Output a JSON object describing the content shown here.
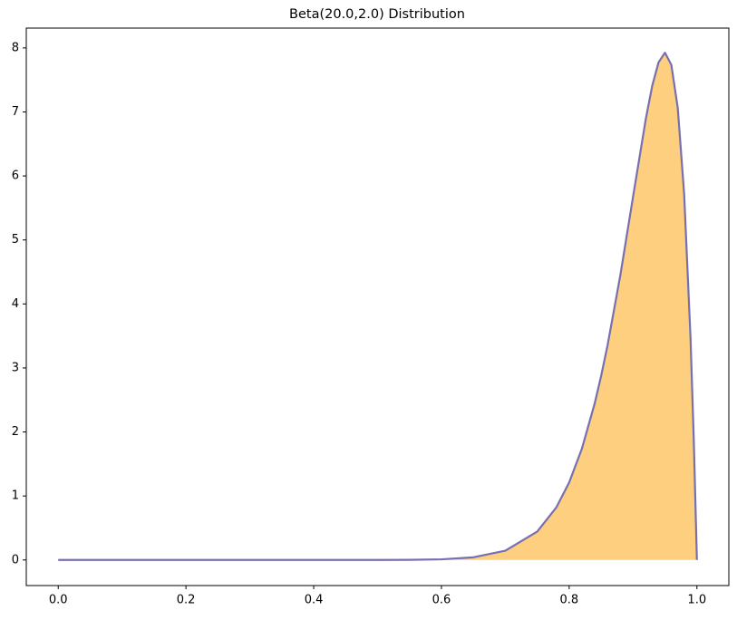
{
  "chart_data": {
    "type": "area",
    "title": "Beta(20.0,2.0) Distribution",
    "x": [
      0,
      0.1,
      0.2,
      0.3,
      0.4,
      0.5,
      0.55,
      0.6,
      0.65,
      0.7,
      0.75,
      0.78,
      0.8,
      0.82,
      0.84,
      0.85,
      0.86,
      0.88,
      0.9,
      0.92,
      0.93,
      0.94,
      0.95,
      0.96,
      0.97,
      0.98,
      0.99,
      0.995,
      1.0
    ],
    "values": [
      0,
      0,
      0,
      0,
      0,
      0.0004,
      0.0022,
      0.0102,
      0.041,
      0.1437,
      0.444,
      0.823,
      1.2107,
      1.741,
      2.447,
      2.873,
      3.349,
      4.442,
      5.674,
      6.891,
      7.406,
      7.776,
      7.926,
      7.735,
      7.064,
      5.722,
      3.47,
      1.909,
      0
    ],
    "color": "#7670b0",
    "fill_color": "#fecf7f",
    "xlim": [
      -0.05,
      1.05
    ],
    "ylim": [
      -0.4,
      8.31
    ],
    "xticks": [
      {
        "value": 0,
        "label": "0.0"
      },
      0.2,
      0.4,
      0.6,
      0.8,
      {
        "value": 1,
        "label": "1.0"
      }
    ],
    "yticks": [
      0,
      1,
      2,
      3,
      4,
      5,
      6,
      7,
      8
    ]
  }
}
